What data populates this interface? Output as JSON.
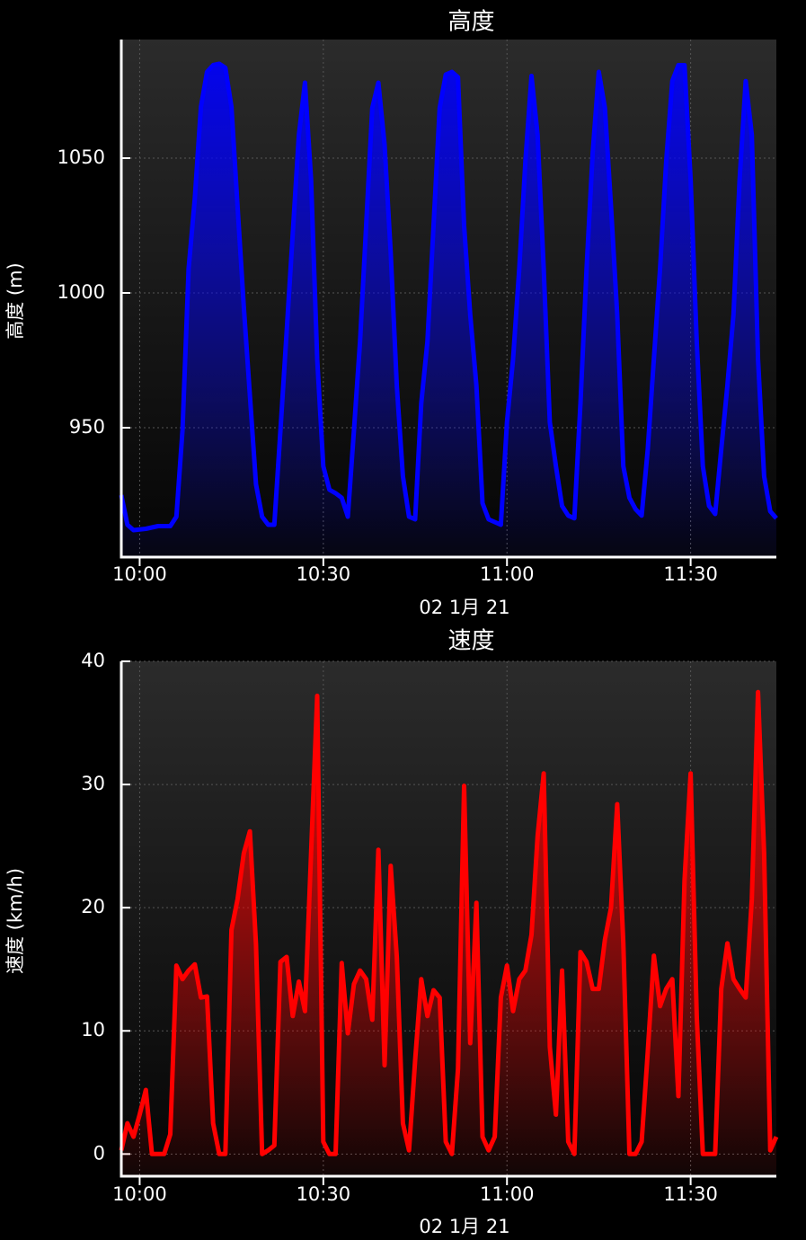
{
  "chart_data": [
    {
      "type": "area",
      "title": "高度",
      "x_label": "02 1月 21",
      "y_label": "高度 (m)",
      "color": "#0000ff",
      "grid": true,
      "xlim": [
        "09:57",
        "11:44"
      ],
      "xticks": [
        "10:00",
        "10:30",
        "11:00",
        "11:30"
      ],
      "ylim": [
        902,
        1094
      ],
      "yticks": [
        950,
        1000,
        1050
      ],
      "x": [
        "09:57",
        "09:58",
        "09:59",
        "10:01",
        "10:03",
        "10:05",
        "10:06",
        "10:07",
        "10:08",
        "10:09",
        "10:10",
        "10:11",
        "10:12",
        "10:13",
        "10:14",
        "10:15",
        "10:16",
        "10:17",
        "10:18",
        "10:19",
        "10:20",
        "10:21",
        "10:22",
        "10:23",
        "10:24",
        "10:25",
        "10:26",
        "10:27",
        "10:28",
        "10:29",
        "10:30",
        "10:31",
        "10:32",
        "10:33",
        "10:34",
        "10:35",
        "10:36",
        "10:37",
        "10:38",
        "10:39",
        "10:40",
        "10:41",
        "10:42",
        "10:43",
        "10:44",
        "10:45",
        "10:46",
        "10:47",
        "10:48",
        "10:49",
        "10:50",
        "10:51",
        "10:52",
        "10:53",
        "10:54",
        "10:55",
        "10:56",
        "10:57",
        "10:58",
        "10:59",
        "11:00",
        "11:01",
        "11:02",
        "11:03",
        "11:04",
        "11:05",
        "11:06",
        "11:07",
        "11:08",
        "11:09",
        "11:10",
        "11:11",
        "11:12",
        "11:13",
        "11:14",
        "11:15",
        "11:16",
        "11:17",
        "11:18",
        "11:19",
        "11:20",
        "11:21",
        "11:22",
        "11:23",
        "11:24",
        "11:25",
        "11:26",
        "11:27",
        "11:28",
        "11:29",
        "11:30",
        "11:31",
        "11:32",
        "11:33",
        "11:34",
        "11:35",
        "11:36",
        "11:37",
        "11:38",
        "11:39",
        "11:40",
        "11:41",
        "11:42",
        "11:43",
        "11:44"
      ],
      "values": [
        925,
        914,
        912,
        912.5,
        913.5,
        913.5,
        917,
        949,
        1009,
        1035,
        1069,
        1082,
        1084.5,
        1085,
        1083.5,
        1069,
        1032,
        995,
        962,
        929,
        917,
        914,
        914,
        949,
        985.5,
        1022,
        1058.5,
        1078,
        1042,
        975.5,
        935.7,
        927,
        925.7,
        924,
        917,
        949,
        982,
        1025,
        1068.6,
        1078,
        1055,
        1015,
        965.6,
        932,
        917,
        916,
        959,
        982,
        1025,
        1068.6,
        1081,
        1082,
        1080,
        1025,
        992,
        965.6,
        922,
        916,
        915,
        914,
        952,
        975.5,
        1009,
        1048.7,
        1080.5,
        1058.6,
        1009,
        952,
        935.7,
        921,
        917.4,
        916.4,
        959,
        1009,
        1052,
        1082,
        1068.6,
        1032,
        992,
        935.7,
        924,
        919.8,
        917.4,
        942,
        975.5,
        1009,
        1048.7,
        1078.6,
        1084.5,
        1084.5,
        1042,
        982,
        935.7,
        921,
        918,
        942,
        965.6,
        992,
        1042,
        1078.6,
        1058.6,
        975.5,
        932,
        919,
        916.4
      ]
    },
    {
      "type": "area",
      "title": "速度",
      "x_label": "02 1月 21",
      "y_label": "速度 (km/h)",
      "color": "#ff0000",
      "grid": true,
      "xlim": [
        "09:57",
        "11:44"
      ],
      "xticks": [
        "10:00",
        "10:30",
        "11:00",
        "11:30"
      ],
      "ylim": [
        -1.8,
        40
      ],
      "yticks": [
        0,
        10,
        20,
        30,
        40
      ],
      "x": [
        "09:57",
        "09:58",
        "09:59",
        "10:00",
        "10:01",
        "10:02",
        "10:03",
        "10:04",
        "10:05",
        "10:06",
        "10:07",
        "10:08",
        "10:09",
        "10:10",
        "10:11",
        "10:12",
        "10:13",
        "10:14",
        "10:15",
        "10:16",
        "10:17",
        "10:18",
        "10:19",
        "10:20",
        "10:21",
        "10:22",
        "10:23",
        "10:24",
        "10:25",
        "10:26",
        "10:27",
        "10:28",
        "10:29",
        "10:30",
        "10:31",
        "10:32",
        "10:33",
        "10:34",
        "10:35",
        "10:36",
        "10:37",
        "10:38",
        "10:39",
        "10:40",
        "10:41",
        "10:42",
        "10:43",
        "10:44",
        "10:45",
        "10:46",
        "10:47",
        "10:48",
        "10:49",
        "10:50",
        "10:51",
        "10:52",
        "10:53",
        "10:54",
        "10:55",
        "10:56",
        "10:57",
        "10:58",
        "10:59",
        "11:00",
        "11:01",
        "11:02",
        "11:03",
        "11:04",
        "11:05",
        "11:06",
        "11:07",
        "11:08",
        "11:09",
        "11:10",
        "11:11",
        "11:12",
        "11:13",
        "11:14",
        "11:15",
        "11:16",
        "11:17",
        "11:18",
        "11:19",
        "11:20",
        "11:21",
        "11:22",
        "11:23",
        "11:24",
        "11:25",
        "11:26",
        "11:27",
        "11:28",
        "11:29",
        "11:30",
        "11:31",
        "11:32",
        "11:33",
        "11:34",
        "11:35",
        "11:36",
        "11:37",
        "11:38",
        "11:39",
        "11:40",
        "11:41",
        "11:42",
        "11:43",
        "11:44"
      ],
      "values": [
        0.3,
        2.5,
        1.4,
        3.2,
        5.2,
        0,
        0,
        0,
        1.6,
        15.3,
        14.2,
        14.9,
        15.4,
        12.7,
        12.8,
        2.5,
        0,
        0,
        18.2,
        20.7,
        24.4,
        26.2,
        17,
        0,
        0.3,
        0.7,
        15.6,
        16,
        11.2,
        14,
        11.6,
        24.4,
        37.2,
        1,
        0,
        0,
        15.5,
        9.8,
        13.8,
        14.9,
        14.2,
        10.9,
        24.7,
        7.2,
        23.4,
        16,
        2.5,
        0.3,
        7.6,
        14.2,
        11.2,
        13.3,
        12.7,
        1,
        0,
        6.9,
        29.9,
        9,
        20.4,
        1.4,
        0.3,
        1.4,
        12.7,
        15.3,
        11.6,
        14.2,
        14.9,
        17.8,
        25.8,
        30.9,
        8.7,
        3.2,
        14.9,
        1,
        0,
        16.4,
        15.6,
        13.4,
        13.4,
        17.4,
        20,
        28.4,
        17.1,
        0,
        0,
        1,
        8.3,
        16.1,
        12,
        13.4,
        14.2,
        4.7,
        22.2,
        30.9,
        11.2,
        0,
        0,
        0,
        13.4,
        17.1,
        14.2,
        13.4,
        12.7,
        20.7,
        37.5,
        24.4,
        0.3,
        1.4
      ]
    }
  ]
}
